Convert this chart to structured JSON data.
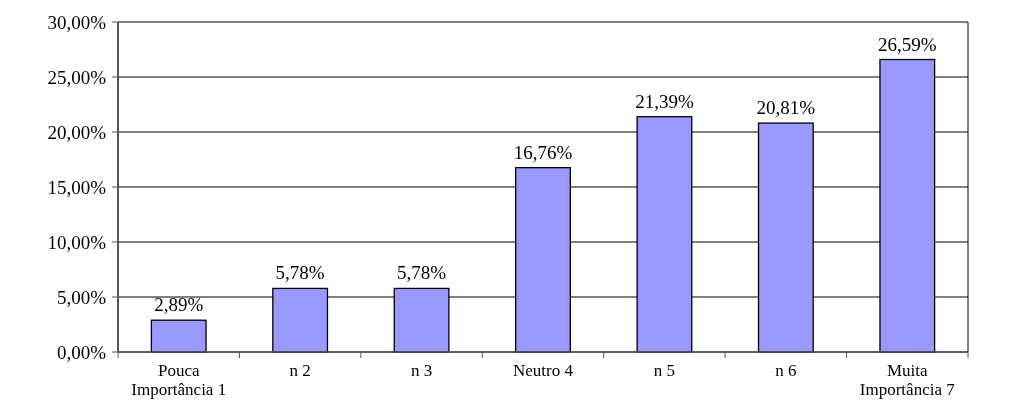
{
  "chart_data": {
    "type": "bar",
    "categories": [
      "Pouca Importância 1",
      "n 2",
      "n 3",
      "Neutro 4",
      "n 5",
      "n 6",
      "Muita Importância 7"
    ],
    "values": [
      2.89,
      5.78,
      5.78,
      16.76,
      21.39,
      20.81,
      26.59
    ],
    "value_labels": [
      "2,89%",
      "5,78%",
      "5,78%",
      "16,76%",
      "21,39%",
      "20,81%",
      "26,59%"
    ],
    "color": "#9999ff",
    "ylim": [
      0,
      30
    ],
    "yticks": [
      {
        "value": 0,
        "label": "0,00%"
      },
      {
        "value": 5,
        "label": "5,00%"
      },
      {
        "value": 10,
        "label": "10,00%"
      },
      {
        "value": 15,
        "label": "15,00%"
      },
      {
        "value": 20,
        "label": "20,00%"
      },
      {
        "value": 25,
        "label": "25,00%"
      },
      {
        "value": 30,
        "label": "30,00%"
      }
    ],
    "grid": "y"
  }
}
